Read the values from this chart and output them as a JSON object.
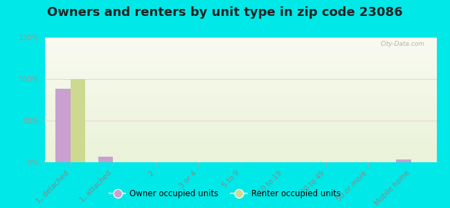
{
  "title": "Owners and renters by unit type in zip code 23086",
  "categories": [
    "1, detached",
    "1, attached",
    "2",
    "3 or 4",
    "5 to 9",
    "10 to 19",
    "20 to 49",
    "50 or more",
    "Mobile home"
  ],
  "owner_values": [
    88,
    7,
    0,
    0,
    0,
    0,
    0,
    0,
    3
  ],
  "renter_values": [
    100,
    0,
    0,
    0,
    0,
    0,
    0,
    0,
    0
  ],
  "owner_color": "#c9a0d0",
  "renter_color": "#cdd990",
  "background_color": "#00e8e8",
  "plot_bg_top": "#eaf2d8",
  "plot_bg_bottom": "#f8faf0",
  "ylim": [
    0,
    150
  ],
  "yticks": [
    0,
    50,
    100,
    150
  ],
  "ytick_labels": [
    "0%",
    "50%",
    "100%",
    "150%"
  ],
  "legend_owner": "Owner occupied units",
  "legend_renter": "Renter occupied units",
  "watermark": "City-Data.com",
  "bar_width": 0.35,
  "title_fontsize": 13,
  "tick_fontsize": 7.5,
  "grid_color": "#e8d0d8"
}
